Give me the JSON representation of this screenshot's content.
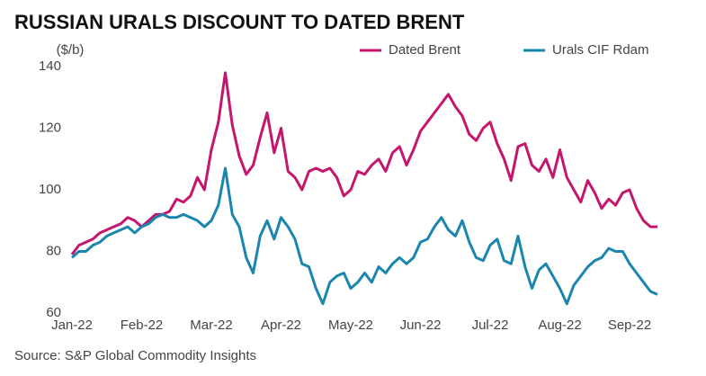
{
  "chart_data": {
    "type": "line",
    "title": "RUSSIAN URALS DISCOUNT TO DATED BRENT",
    "y_label": "($/b)",
    "source": "Source: S&P Global Commodity Insights",
    "categories": [
      "Jan-22",
      null,
      null,
      null,
      null,
      null,
      null,
      null,
      null,
      null,
      "Feb-22",
      null,
      null,
      null,
      null,
      null,
      null,
      null,
      null,
      null,
      "Mar-22",
      null,
      null,
      null,
      null,
      null,
      null,
      null,
      null,
      null,
      "Apr-22",
      null,
      null,
      null,
      null,
      null,
      null,
      null,
      null,
      null,
      "May-22",
      null,
      null,
      null,
      null,
      null,
      null,
      null,
      null,
      null,
      "Jun-22",
      null,
      null,
      null,
      null,
      null,
      null,
      null,
      null,
      null,
      "Jul-22",
      null,
      null,
      null,
      null,
      null,
      null,
      null,
      null,
      null,
      "Aug-22",
      null,
      null,
      null,
      null,
      null,
      null,
      null,
      null,
      null,
      "Sep-22",
      null,
      null,
      null,
      null
    ],
    "series": [
      {
        "name": "Dated Brent",
        "color": "#c4166c",
        "values": [
          79,
          82,
          83,
          84,
          86,
          87,
          88,
          89,
          91,
          90,
          88,
          90,
          92,
          92,
          93,
          97,
          96,
          98,
          104,
          100,
          113,
          122,
          138,
          121,
          111,
          105,
          108,
          117,
          125,
          112,
          120,
          106,
          104,
          100,
          106,
          107,
          106,
          107,
          104,
          98,
          100,
          106,
          105,
          108,
          110,
          106,
          112,
          114,
          108,
          113,
          119,
          122,
          125,
          128,
          131,
          127,
          124,
          118,
          116,
          120,
          122,
          115,
          110,
          103,
          114,
          115,
          108,
          106,
          110,
          104,
          113,
          104,
          100,
          96,
          103,
          99,
          94,
          97,
          95,
          99,
          100,
          94,
          90,
          88,
          88
        ]
      },
      {
        "name": "Urals CIF Rdam",
        "color": "#1a86ae",
        "values": [
          78,
          80,
          80,
          82,
          83,
          85,
          86,
          87,
          88,
          86,
          88,
          89,
          91,
          92,
          91,
          91,
          92,
          91,
          90,
          88,
          90,
          95,
          107,
          92,
          88,
          78,
          73,
          85,
          90,
          84,
          91,
          88,
          84,
          76,
          75,
          68,
          63,
          70,
          72,
          73,
          68,
          70,
          73,
          70,
          75,
          73,
          76,
          78,
          76,
          78,
          83,
          84,
          88,
          91,
          87,
          85,
          90,
          83,
          78,
          77,
          82,
          84,
          77,
          76,
          85,
          75,
          68,
          74,
          76,
          72,
          68,
          63,
          69,
          72,
          75,
          77,
          78,
          81,
          80,
          80,
          76,
          73,
          70,
          67,
          66
        ]
      }
    ],
    "ylim": [
      60,
      140
    ],
    "yticks": [
      60,
      80,
      100,
      120,
      140
    ],
    "grid": false,
    "legend": "top-right"
  }
}
